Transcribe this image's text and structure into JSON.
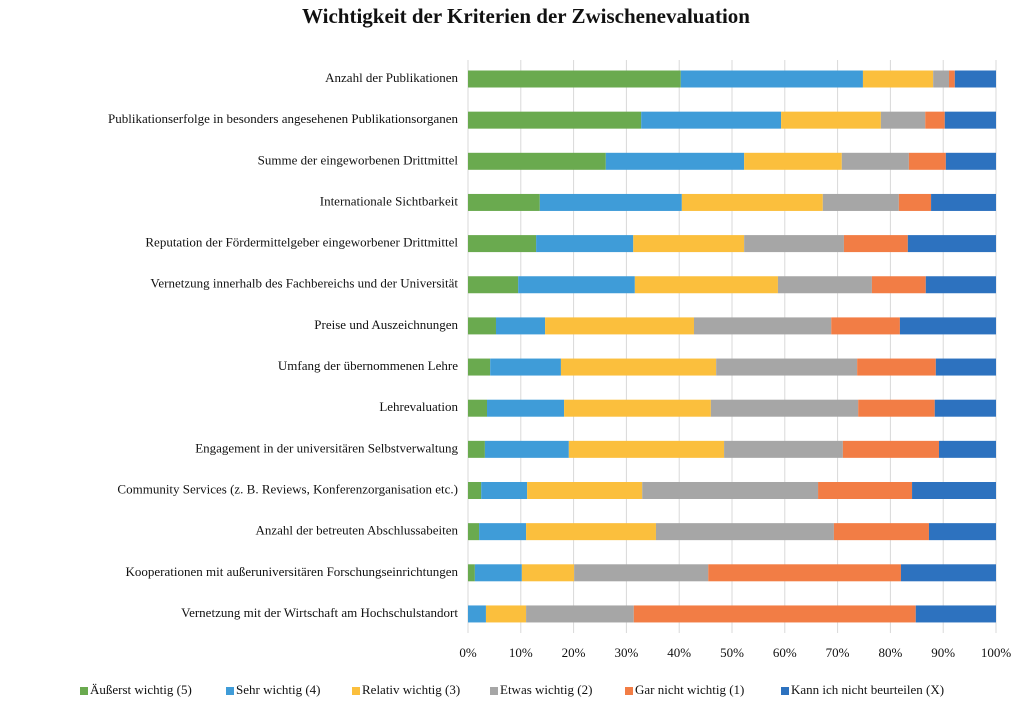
{
  "chart_data": {
    "type": "stacked-bar-horizontal",
    "title": "Wichtigkeit der Kriterien der Zwischenevaluation",
    "categories": [
      "Anzahl der Publikationen",
      "Publikationserfolge in besonders angesehenen Publikationsorganen",
      "Summe der eingeworbenen Drittmittel",
      "Internationale Sichtbarkeit",
      "Reputation der Fördermittelgeber eingeworbener Drittmittel",
      "Vernetzung innerhalb des Fachbereichs und der Universität",
      "Preise und Auszeichnungen",
      "Umfang der übernommenen Lehre",
      "Lehrevaluation",
      "Engagement in der universitären Selbstverwaltung",
      "Community Services (z. B. Reviews, Konferenzorganisation etc.)",
      "Anzahl der betreuten Abschlussabeiten",
      "Kooperationen mit außeruniversitären Forschungseinrichtungen",
      "Vernetzung mit der Wirtschaft am Hochschulstandort"
    ],
    "series": [
      {
        "name": "Äußerst wichtig (5)",
        "color": "#6aaa4f",
        "values": [
          40.3,
          32.8,
          26.1,
          13.6,
          12.9,
          9.5,
          5.3,
          4.2,
          3.6,
          3.2,
          2.5,
          2.1,
          1.3,
          0
        ]
      },
      {
        "name": "Sehr wichtig (4)",
        "color": "#3f9cd8",
        "values": [
          34.5,
          26.5,
          26.2,
          26.9,
          18.4,
          22.1,
          9.3,
          13.4,
          14.6,
          15.9,
          8.7,
          8.9,
          8.9,
          3.4
        ]
      },
      {
        "name": "Relativ wichtig (3)",
        "color": "#fbbf3d",
        "values": [
          13.3,
          18.9,
          18.5,
          26.7,
          21.0,
          27.1,
          28.2,
          29.4,
          27.8,
          29.4,
          21.8,
          24.6,
          9.9,
          7.6
        ]
      },
      {
        "name": "Etwas wichtig (2)",
        "color": "#a6a6a6",
        "values": [
          3.0,
          8.4,
          12.7,
          14.4,
          18.9,
          17.8,
          26.0,
          26.7,
          27.9,
          22.5,
          33.3,
          33.7,
          25.4,
          20.4
        ]
      },
      {
        "name": "Gar nicht wichtig (1)",
        "color": "#f27d45",
        "values": [
          1.1,
          3.7,
          7.0,
          6.1,
          12.1,
          10.2,
          13.0,
          14.9,
          14.5,
          18.2,
          17.8,
          18.0,
          36.5,
          53.4
        ]
      },
      {
        "name": "Kann ich nicht beurteilen (X)",
        "color": "#2d72bf",
        "values": [
          7.8,
          9.7,
          9.5,
          12.3,
          16.7,
          13.3,
          18.2,
          11.4,
          11.6,
          10.8,
          15.9,
          12.7,
          18.0,
          15.2
        ]
      }
    ],
    "xlim": [
      0,
      100
    ],
    "xticks": [
      {
        "value": 0,
        "label": "0%"
      },
      {
        "value": 10,
        "label": "10%"
      },
      {
        "value": 20,
        "label": "20%"
      },
      {
        "value": 30,
        "label": "30%"
      },
      {
        "value": 40,
        "label": "40%"
      },
      {
        "value": 50,
        "label": "50%"
      },
      {
        "value": 60,
        "label": "60%"
      },
      {
        "value": 70,
        "label": "70%"
      },
      {
        "value": 80,
        "label": "80%"
      },
      {
        "value": 90,
        "label": "90%"
      },
      {
        "value": 100,
        "label": "100%"
      }
    ],
    "grid": true,
    "legend": "bottom"
  }
}
